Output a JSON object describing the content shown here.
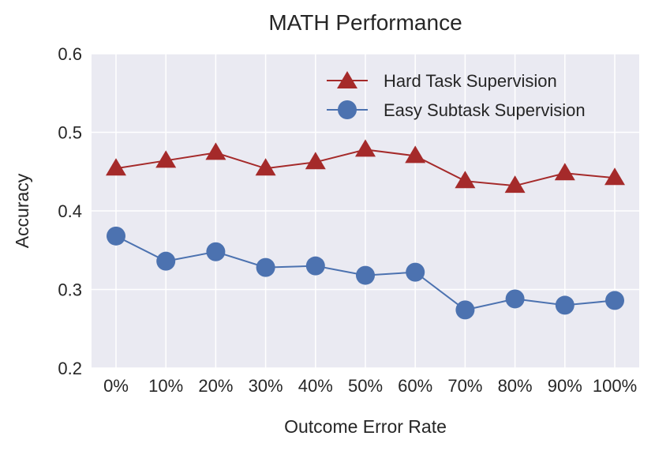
{
  "chart_data": {
    "type": "line",
    "title": "MATH Performance",
    "xlabel": "Outcome Error Rate",
    "ylabel": "Accuracy",
    "categories": [
      "0%",
      "10%",
      "20%",
      "30%",
      "40%",
      "50%",
      "60%",
      "70%",
      "80%",
      "90%",
      "100%"
    ],
    "ylim": [
      0.2,
      0.6
    ],
    "yticks": [
      "0.2",
      "0.3",
      "0.4",
      "0.5",
      "0.6"
    ],
    "grid": true,
    "legend_position": "top-right",
    "series": [
      {
        "name": "Hard Task Supervision",
        "marker": "triangle",
        "color": "#a52a2a",
        "values": [
          0.454,
          0.464,
          0.474,
          0.454,
          0.462,
          0.478,
          0.47,
          0.438,
          0.432,
          0.448,
          0.442
        ]
      },
      {
        "name": "Easy Subtask Supervision",
        "marker": "circle",
        "color": "#4c72b0",
        "values": [
          0.368,
          0.336,
          0.348,
          0.328,
          0.33,
          0.318,
          0.322,
          0.274,
          0.288,
          0.28,
          0.286
        ]
      }
    ]
  }
}
